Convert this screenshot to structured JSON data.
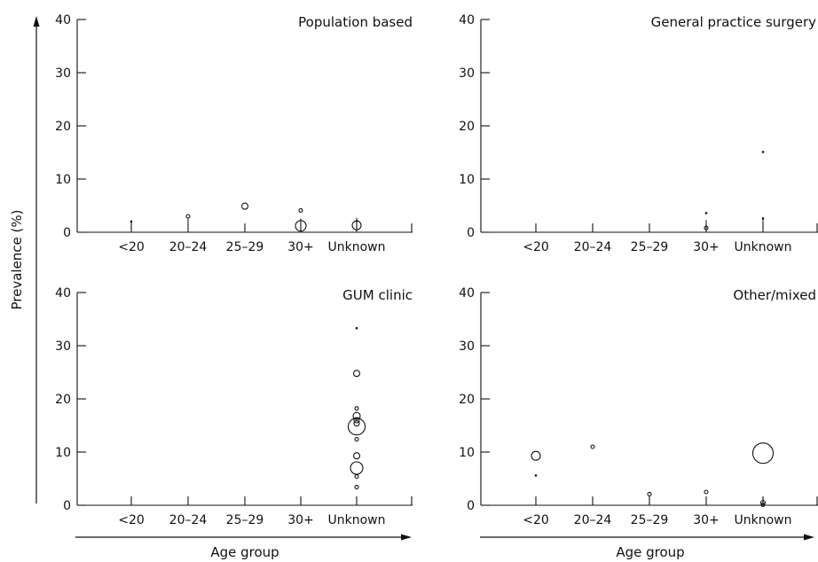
{
  "ylabel": "Prevalence (%)",
  "xlabel": "Age group",
  "chart_data": [
    {
      "type": "scatter",
      "title": "Population based",
      "categories": [
        "<20",
        "20–24",
        "25–29",
        "30+",
        "Unknown"
      ],
      "ylim": [
        0,
        40
      ],
      "yticks": [
        0,
        10,
        20,
        30,
        40
      ],
      "points": [
        {
          "x": "<20",
          "y": 2.0,
          "size": 1,
          "err": [
            0.3,
            2.3
          ]
        },
        {
          "x": "20–24",
          "y": 3.0,
          "size": 2,
          "err": [
            0.2,
            2.8
          ]
        },
        {
          "x": "25–29",
          "y": 4.9,
          "size": 3.5
        },
        {
          "x": "30+",
          "y": 4.1,
          "size": 2
        },
        {
          "x": "30+",
          "y": 1.2,
          "size": 6,
          "err": [
            0.0,
            2.6
          ]
        },
        {
          "x": "Unknown",
          "y": 2.1,
          "size": 1
        },
        {
          "x": "Unknown",
          "y": 1.3,
          "size": 5,
          "err": [
            0.0,
            2.7
          ]
        }
      ]
    },
    {
      "type": "scatter",
      "title": "General practice surgery",
      "categories": [
        "<20",
        "20–24",
        "25–29",
        "30+",
        "Unknown"
      ],
      "ylim": [
        0,
        40
      ],
      "yticks": [
        0,
        10,
        20,
        30,
        40
      ],
      "points": [
        {
          "x": "30+",
          "y": 3.6,
          "size": 1
        },
        {
          "x": "30+",
          "y": 0.8,
          "size": 2,
          "err": [
            0.0,
            2.3
          ]
        },
        {
          "x": "Unknown",
          "y": 15.1,
          "size": 1
        },
        {
          "x": "Unknown",
          "y": 2.6,
          "size": 1,
          "err": [
            0.0,
            2.6
          ]
        }
      ]
    },
    {
      "type": "scatter",
      "title": "GUM clinic",
      "categories": [
        "<20",
        "20–24",
        "25–29",
        "30+",
        "Unknown"
      ],
      "ylim": [
        0,
        40
      ],
      "yticks": [
        0,
        10,
        20,
        30,
        40
      ],
      "points": [
        {
          "x": "Unknown",
          "y": 33.3,
          "size": 1
        },
        {
          "x": "Unknown",
          "y": 24.8,
          "size": 3.5
        },
        {
          "x": "Unknown",
          "y": 18.2,
          "size": 2
        },
        {
          "x": "Unknown",
          "y": 16.8,
          "size": 4
        },
        {
          "x": "Unknown",
          "y": 16.0,
          "size": 3
        },
        {
          "x": "Unknown",
          "y": 15.4,
          "size": 3
        },
        {
          "x": "Unknown",
          "y": 14.8,
          "size": 9.5
        },
        {
          "x": "Unknown",
          "y": 12.4,
          "size": 2
        },
        {
          "x": "Unknown",
          "y": 9.3,
          "size": 3.5
        },
        {
          "x": "Unknown",
          "y": 7.0,
          "size": 7
        },
        {
          "x": "Unknown",
          "y": 5.4,
          "size": 2
        },
        {
          "x": "Unknown",
          "y": 3.4,
          "size": 2
        }
      ]
    },
    {
      "type": "scatter",
      "title": "Other/mixed",
      "categories": [
        "<20",
        "20–24",
        "25–29",
        "30+",
        "Unknown"
      ],
      "ylim": [
        0,
        40
      ],
      "yticks": [
        0,
        10,
        20,
        30,
        40
      ],
      "points": [
        {
          "x": "<20",
          "y": 9.3,
          "size": 5
        },
        {
          "x": "<20",
          "y": 5.6,
          "size": 1
        },
        {
          "x": "20–24",
          "y": 11.0,
          "size": 2
        },
        {
          "x": "25–29",
          "y": 2.1,
          "size": 2
        },
        {
          "x": "30+",
          "y": 2.5,
          "size": 2
        },
        {
          "x": "Unknown",
          "y": 9.8,
          "size": 11.5
        },
        {
          "x": "Unknown",
          "y": 0.5,
          "size": 2.5
        },
        {
          "x": "Unknown",
          "y": 0.1,
          "size": 2
        }
      ]
    }
  ]
}
